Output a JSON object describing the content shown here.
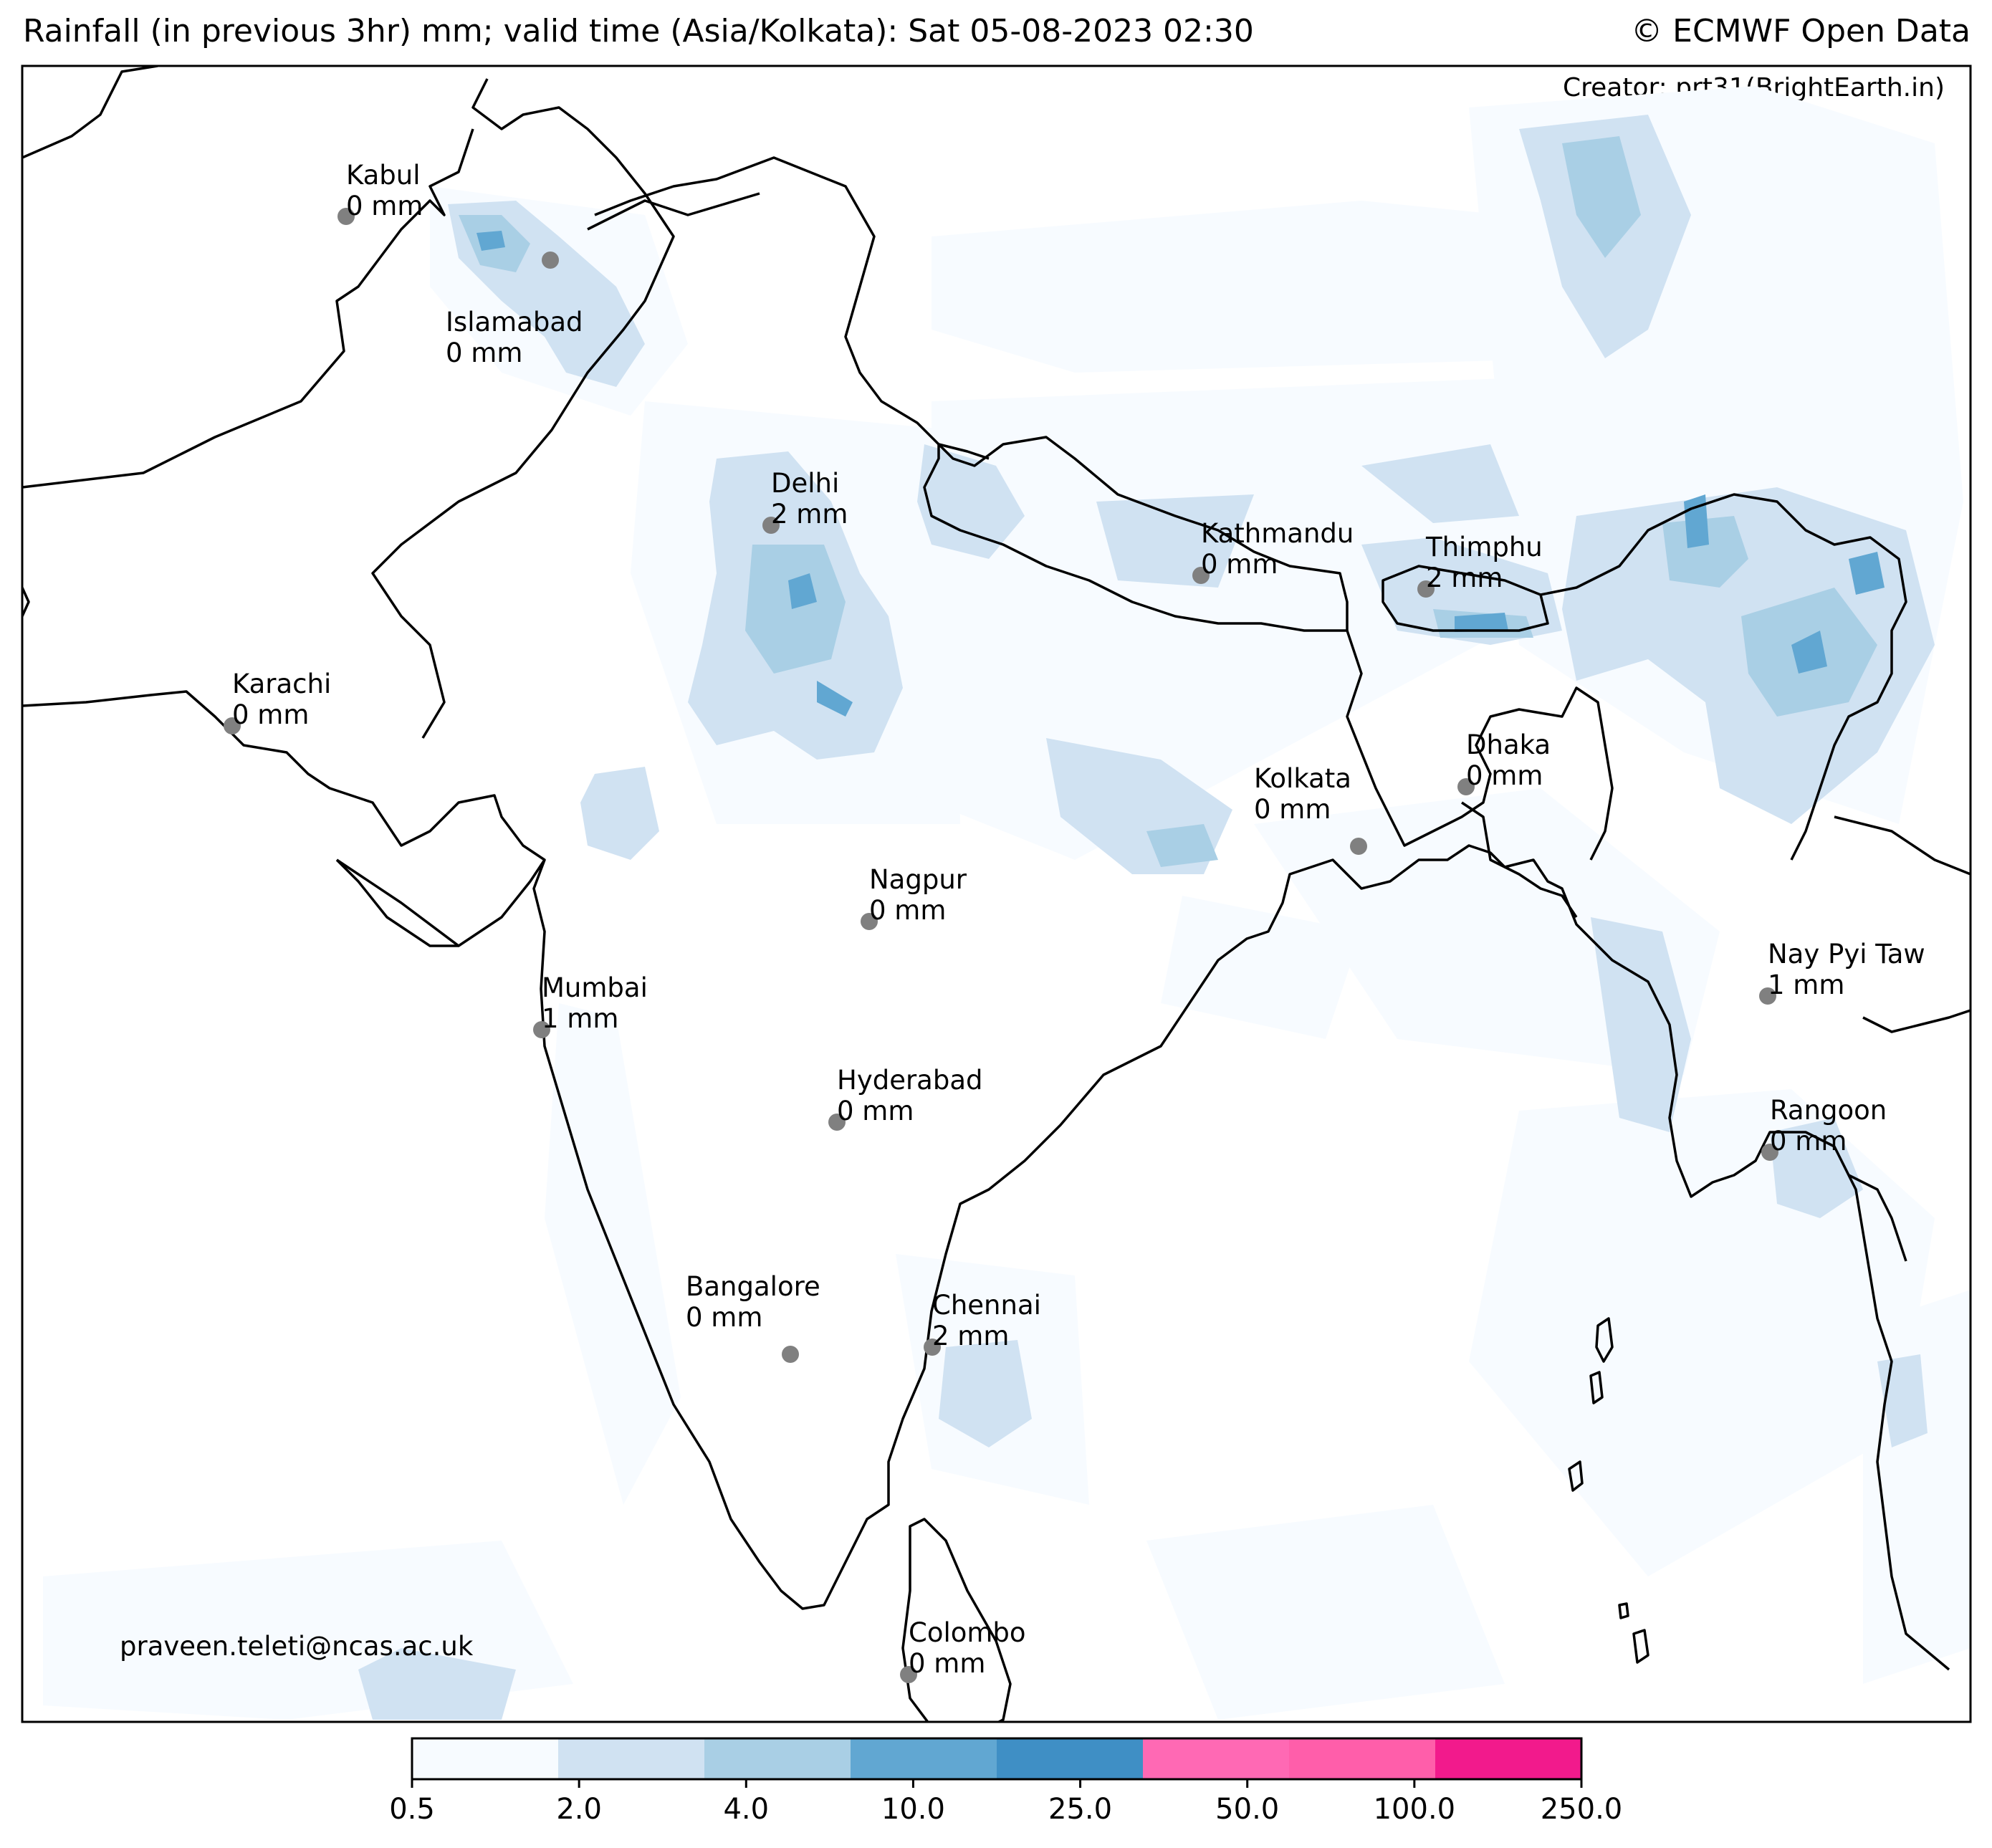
{
  "title": {
    "left": "Rainfall (in previous 3hr) mm; valid time (Asia/Kolkata): Sat 05-08-2023 02:30",
    "right": "© ECMWF Open Data"
  },
  "creator": "Creator: prt31(BrightEarth.in)",
  "contact": "praveen.teleti@ncas.ac.uk",
  "cities": [
    {
      "name": "Kabul",
      "value": "0 mm"
    },
    {
      "name": "Islamabad",
      "value": "0 mm"
    },
    {
      "name": "Delhi",
      "value": "2 mm"
    },
    {
      "name": "Kathmandu",
      "value": "0 mm"
    },
    {
      "name": "Thimphu",
      "value": "2 mm"
    },
    {
      "name": "Karachi",
      "value": "0 mm"
    },
    {
      "name": "Kolkata",
      "value": "0 mm"
    },
    {
      "name": "Dhaka",
      "value": "0 mm"
    },
    {
      "name": "Nagpur",
      "value": "0 mm"
    },
    {
      "name": "Mumbai",
      "value": "1 mm"
    },
    {
      "name": "Nay Pyi Taw",
      "value": "1 mm"
    },
    {
      "name": "Hyderabad",
      "value": "0 mm"
    },
    {
      "name": "Rangoon",
      "value": "0 mm"
    },
    {
      "name": "Bangalore",
      "value": "0 mm"
    },
    {
      "name": "Chennai",
      "value": "2 mm"
    },
    {
      "name": "Colombo",
      "value": "0 mm"
    }
  ],
  "colorbar": {
    "ticks": [
      "0.5",
      "2.0",
      "4.0",
      "10.0",
      "25.0",
      "50.0",
      "100.0",
      "250.0"
    ],
    "colors": [
      "#f7fbff",
      "#d0e2f2",
      "#a9cfe5",
      "#61a7d2",
      "#3f8fc5",
      "#ff69b4",
      "#ff5eaa",
      "#f21a8c"
    ]
  },
  "city_marker_color": "#808080",
  "coastline_color": "#000000"
}
